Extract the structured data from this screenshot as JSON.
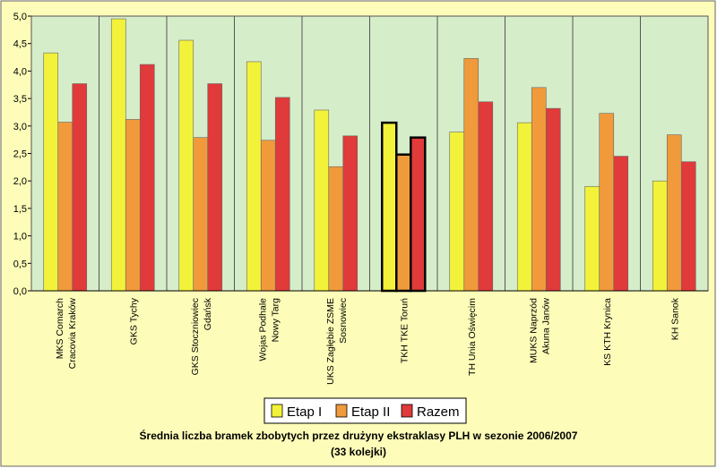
{
  "chart_data": {
    "type": "bar",
    "title": "Średnia liczba bramek zbobytych przez drużyny ekstraklasy PLH w sezonie 2006/2007",
    "subtitle": "(33 kolejki)",
    "categories": [
      [
        "MKS Comarch",
        "Cracovia Kraków"
      ],
      [
        "GKS Tychy"
      ],
      [
        "GKS Stoczniowiec",
        "Gdańsk"
      ],
      [
        "Wojas Podhale",
        "Nowy Targ"
      ],
      [
        "UKS Zagłębie ZSME",
        "Sosnowiec"
      ],
      [
        "TKH TKE Toruń"
      ],
      [
        "TH Unia Oświęcim"
      ],
      [
        "MUKS Naprzód",
        "Akuna Janów"
      ],
      [
        "KS KTH Krynica"
      ],
      [
        "KH Sanok"
      ]
    ],
    "series": [
      {
        "name": "Etap I",
        "color": "#f2f23a",
        "values": [
          4.33,
          4.95,
          4.56,
          4.17,
          3.29,
          3.06,
          2.89,
          3.06,
          1.9,
          2.0
        ]
      },
      {
        "name": "Etap II",
        "color": "#f09a3c",
        "values": [
          3.07,
          3.12,
          2.79,
          2.74,
          2.26,
          2.48,
          4.23,
          3.7,
          3.23,
          2.84
        ]
      },
      {
        "name": "Razem",
        "color": "#e03a3a",
        "values": [
          3.77,
          4.12,
          3.77,
          3.52,
          2.82,
          2.79,
          3.44,
          3.32,
          2.45,
          2.35
        ]
      }
    ],
    "highlight_category": 5,
    "ylim": [
      0,
      5
    ],
    "yticks": [
      {
        "value": 0,
        "label": "0,0"
      },
      {
        "value": 0.5,
        "label": "0,5"
      },
      {
        "value": 1,
        "label": "1,0"
      },
      {
        "value": 1.5,
        "label": "1,5"
      },
      {
        "value": 2,
        "label": "2,0"
      },
      {
        "value": 2.5,
        "label": "2,5"
      },
      {
        "value": 3,
        "label": "3,0"
      },
      {
        "value": 3.5,
        "label": "3,5"
      },
      {
        "value": 4,
        "label": "4,0"
      },
      {
        "value": 4.5,
        "label": "4,5"
      },
      {
        "value": 5,
        "label": "5,0"
      }
    ],
    "grid": true,
    "legend": "bottom"
  }
}
